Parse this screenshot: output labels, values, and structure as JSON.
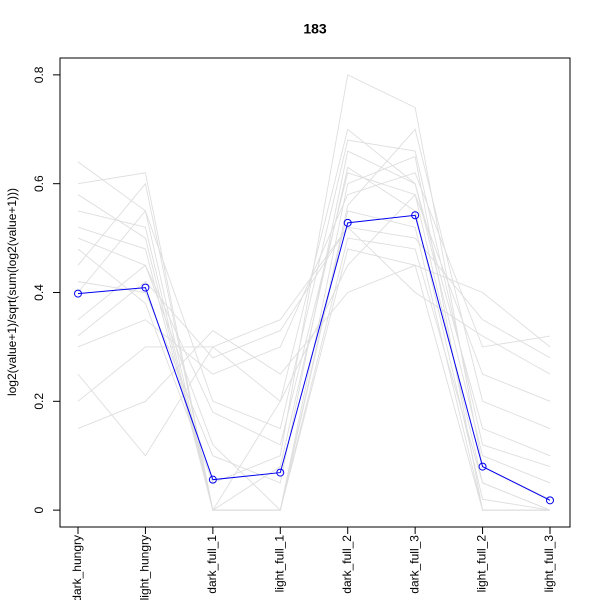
{
  "chart_data": {
    "type": "line",
    "title": "183",
    "y_label": "log2(value+1)/sqrt(sum(log2(value+1)))",
    "categories": [
      "dark_hungry",
      "light_hungry",
      "dark_full_1",
      "light_full_1",
      "dark_full_2",
      "dark_full_3",
      "light_full_2",
      "light_full_3"
    ],
    "ylim": [
      -0.031,
      0.831
    ],
    "yticks": [
      0.0,
      0.2,
      0.4,
      0.6,
      0.8
    ],
    "series": [
      {
        "color": "#dedede",
        "values": [
          0.64,
          0.55,
          0.0,
          0.0,
          0.55,
          0.52,
          0.0,
          0.0
        ]
      },
      {
        "color": "#dedede",
        "values": [
          0.5,
          0.45,
          0.18,
          0.12,
          0.62,
          0.58,
          0.05,
          0.0
        ]
      },
      {
        "color": "#dedede",
        "values": [
          0.45,
          0.6,
          0.0,
          0.2,
          0.7,
          0.6,
          0.1,
          0.05
        ]
      },
      {
        "color": "#dedede",
        "values": [
          0.3,
          0.35,
          0.25,
          0.3,
          0.58,
          0.62,
          0.3,
          0.32
        ]
      },
      {
        "color": "#dedede",
        "values": [
          0.55,
          0.52,
          0.0,
          0.0,
          0.6,
          0.65,
          0.0,
          0.0
        ]
      },
      {
        "color": "#dedede",
        "values": [
          0.2,
          0.3,
          0.3,
          0.35,
          0.52,
          0.5,
          0.35,
          0.28
        ]
      },
      {
        "color": "#dedede",
        "values": [
          0.42,
          0.4,
          0.1,
          0.05,
          0.66,
          0.6,
          0.15,
          0.1
        ]
      },
      {
        "color": "#dedede",
        "values": [
          0.6,
          0.62,
          0.0,
          0.0,
          0.48,
          0.45,
          0.0,
          0.0
        ]
      },
      {
        "color": "#dedede",
        "values": [
          0.15,
          0.2,
          0.33,
          0.25,
          0.4,
          0.45,
          0.4,
          0.3
        ]
      },
      {
        "color": "#dedede",
        "values": [
          0.48,
          0.38,
          0.05,
          0.1,
          0.8,
          0.74,
          0.08,
          0.02
        ]
      },
      {
        "color": "#dedede",
        "values": [
          0.35,
          0.45,
          0.12,
          0.0,
          0.56,
          0.7,
          0.2,
          0.15
        ]
      },
      {
        "color": "#dedede",
        "values": [
          0.52,
          0.48,
          0.0,
          0.08,
          0.63,
          0.55,
          0.02,
          0.0
        ]
      },
      {
        "color": "#dedede",
        "values": [
          0.25,
          0.1,
          0.3,
          0.2,
          0.45,
          0.58,
          0.25,
          0.2
        ]
      },
      {
        "color": "#dedede",
        "values": [
          0.4,
          0.55,
          0.2,
          0.15,
          0.68,
          0.66,
          0.12,
          0.08
        ]
      },
      {
        "color": "#dedede",
        "values": [
          0.58,
          0.5,
          0.0,
          0.0,
          0.5,
          0.48,
          0.05,
          0.0
        ]
      },
      {
        "color": "#dedede",
        "values": [
          0.32,
          0.42,
          0.28,
          0.33,
          0.52,
          0.4,
          0.32,
          0.25
        ]
      },
      {
        "color": "#0000ee",
        "values": [
          0.398,
          0.409,
          0.056,
          0.069,
          0.528,
          0.542,
          0.08,
          0.018
        ],
        "markers": true
      }
    ]
  }
}
